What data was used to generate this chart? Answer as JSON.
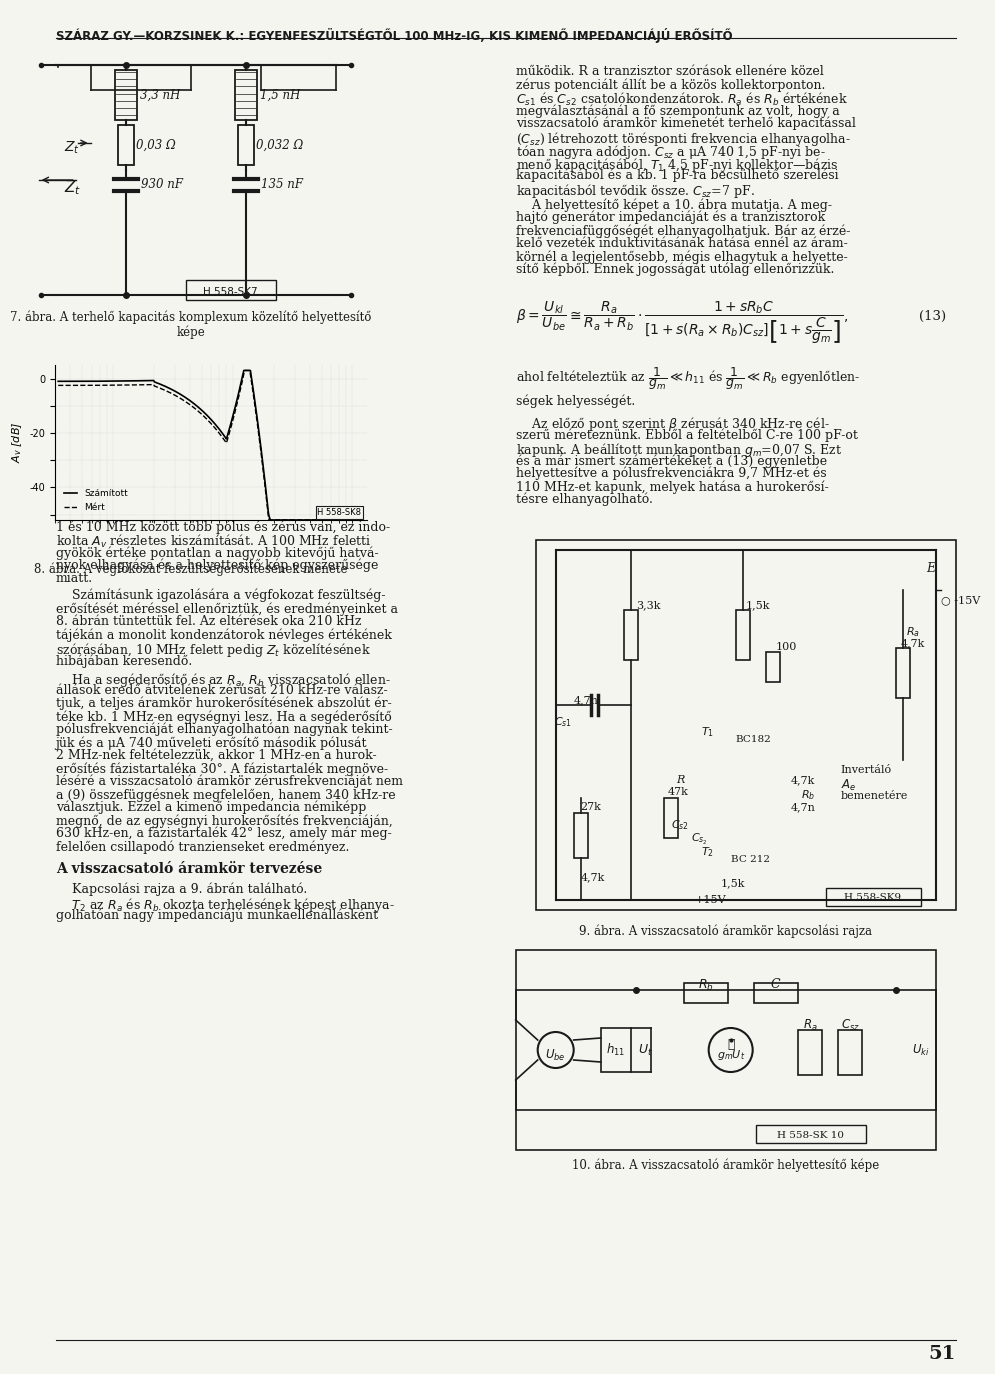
{
  "title": "SZÁRAZ GY.—KORZSINEK K.: EGYENFESZÜLTSÉGTŐL 100 MHz-IG, KIS KIMENŐ IMPEDANCIÁJÚ ERŐSÍTŐ",
  "page_number": "51",
  "bg_color": "#f5f5f0",
  "text_color": "#1a1a1a",
  "fig7_caption": "7. ábra. A terhelő kapacitás komplexum közelítő helyettesítő\nképe",
  "fig8_caption": "8. ábra. A végfokozat feszültségerősítésének menete",
  "fig9_caption": "9. ábra. A visszacsatoló áramkör kapcsolási rajza",
  "fig10_caption": "10. ábra. A visszacsatoló áramkör helyettesítő képe"
}
